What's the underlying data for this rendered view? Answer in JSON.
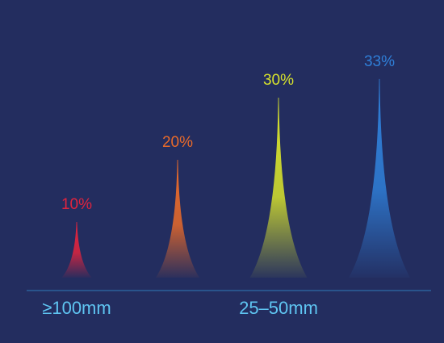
{
  "chart_data": {
    "type": "bar",
    "style": "spike",
    "categories": [
      "≥100mm",
      "",
      "25–50mm",
      ""
    ],
    "values": [
      10,
      20,
      30,
      33
    ],
    "value_labels": [
      "10%",
      "20%",
      "30%",
      "33%"
    ],
    "colors": [
      "#e0243e",
      "#e86a2a",
      "#d7e22c",
      "#2f7fd8"
    ],
    "ylim": [
      0,
      35
    ],
    "axis_color": "#2f7ab9",
    "tick_label_color": "#5fc5f2",
    "grid": false
  }
}
